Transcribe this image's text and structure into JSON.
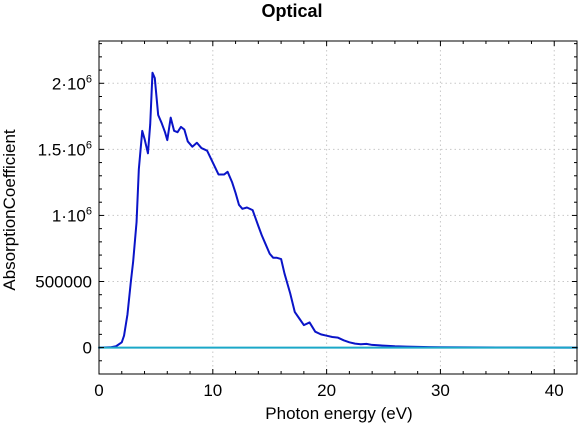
{
  "chart_data": {
    "type": "line",
    "title": "Optical",
    "xlabel": "Photon energy (eV)",
    "ylabel": "AbsorptionCoefficient",
    "xlim": [
      0,
      42
    ],
    "ylim": [
      -200000,
      2320000
    ],
    "grid": true,
    "x_ticks": [
      {
        "value": 0,
        "label": "0"
      },
      {
        "value": 10,
        "label": "10"
      },
      {
        "value": 20,
        "label": "20"
      },
      {
        "value": 30,
        "label": "30"
      },
      {
        "value": 40,
        "label": "40"
      }
    ],
    "y_ticks": [
      {
        "value": 0,
        "base": "0",
        "sup": ""
      },
      {
        "value": 500000,
        "base": "500000",
        "sup": ""
      },
      {
        "value": 1000000,
        "base": "1·10",
        "sup": "6"
      },
      {
        "value": 1500000,
        "base": "1.5·10",
        "sup": "6"
      },
      {
        "value": 2000000,
        "base": "2·10",
        "sup": "6"
      }
    ],
    "series": [
      {
        "color": "#0a14c8",
        "x": [
          0,
          1.0,
          1.5,
          2.0,
          2.2,
          2.5,
          2.8,
          3.0,
          3.3,
          3.5,
          3.8,
          4.0,
          4.3,
          4.5,
          4.7,
          4.9,
          5.2,
          5.5,
          5.8,
          6.0,
          6.3,
          6.6,
          6.9,
          7.2,
          7.5,
          7.8,
          8.2,
          8.6,
          9.0,
          9.5,
          10.0,
          10.5,
          11.0,
          11.3,
          11.7,
          12.0,
          12.3,
          12.6,
          13.0,
          13.5,
          14.0,
          14.3,
          14.6,
          15.0,
          15.3,
          15.6,
          16.0,
          16.3,
          16.8,
          17.2,
          17.6,
          18.0,
          18.5,
          19.0,
          19.5,
          20.0,
          20.5,
          21.0,
          21.5,
          22.0,
          22.5,
          23.0,
          23.5,
          24.0,
          25.0,
          26.0,
          27.0,
          28.0,
          29.0,
          30.0,
          35.0,
          42.0
        ],
        "y": [
          0,
          2000,
          10000,
          40000,
          90000,
          250000,
          500000,
          650000,
          950000,
          1350000,
          1640000,
          1580000,
          1470000,
          1690000,
          2080000,
          2040000,
          1760000,
          1700000,
          1630000,
          1570000,
          1740000,
          1640000,
          1630000,
          1670000,
          1650000,
          1560000,
          1520000,
          1550000,
          1510000,
          1490000,
          1400000,
          1310000,
          1310000,
          1330000,
          1250000,
          1170000,
          1080000,
          1050000,
          1060000,
          1040000,
          920000,
          850000,
          790000,
          710000,
          680000,
          680000,
          670000,
          560000,
          410000,
          270000,
          220000,
          170000,
          190000,
          120000,
          100000,
          90000,
          80000,
          75000,
          55000,
          40000,
          30000,
          25000,
          28000,
          20000,
          15000,
          10000,
          7000,
          5000,
          3000,
          2000,
          1000,
          0
        ]
      },
      {
        "color": "#1aa8c8",
        "x": [
          0,
          42
        ],
        "y": [
          0,
          0
        ]
      }
    ]
  }
}
